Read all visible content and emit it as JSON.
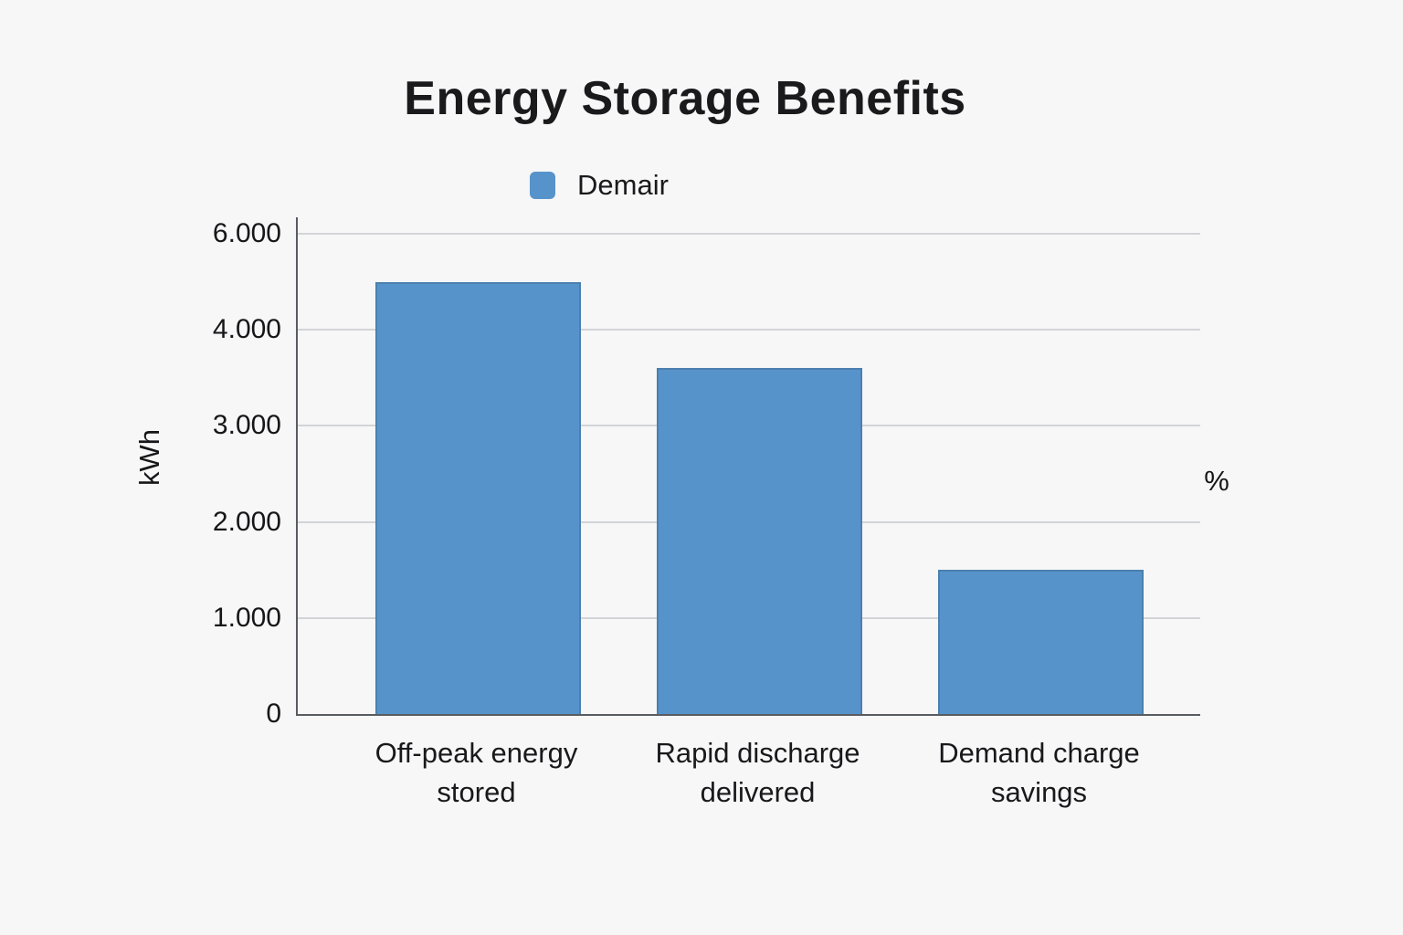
{
  "colors": {
    "background": "#f7f7f8",
    "bar_fill": "#5793cb",
    "bar_stroke": "#4c7fae",
    "gridline": "#d2d4d7",
    "axis_line": "#595c60",
    "text": "#19191b"
  },
  "chart_data": {
    "type": "bar",
    "title": "Energy Storage Benefits",
    "categories": [
      "Off-peak energy stored",
      "Rapid discharge delivered",
      "Demand charge savings"
    ],
    "series": [
      {
        "name": "Demair",
        "color": "#5793cb",
        "values": [
          5000,
          3600,
          1500
        ]
      }
    ],
    "xlabel": "",
    "ylabel": "kWh",
    "ylabel_right": "%",
    "ylim": [
      0,
      6000
    ],
    "yticks": {
      "values": [
        0,
        1000,
        2000,
        3000,
        4000,
        6000
      ],
      "labels": [
        "0",
        "1.000",
        "2.000",
        "3.000",
        "4.000",
        "6.000"
      ]
    },
    "grid": true,
    "legend_position": "top"
  }
}
